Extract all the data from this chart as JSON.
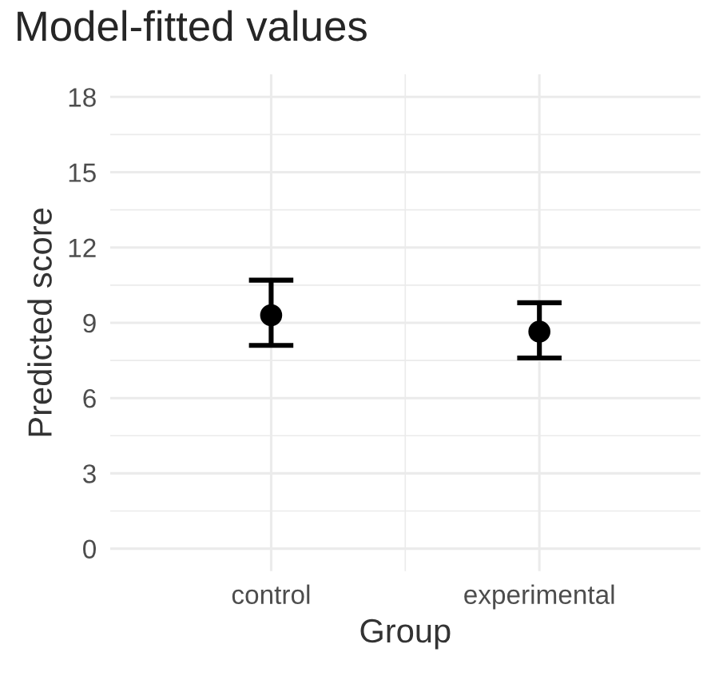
{
  "chart_data": {
    "type": "scatter",
    "title": "Model-fitted values",
    "xlabel": "Group",
    "ylabel": "Predicted score",
    "categories": [
      "control",
      "experimental"
    ],
    "values": [
      9.3,
      8.65
    ],
    "errors": [
      [
        8.1,
        10.7
      ],
      [
        7.6,
        9.8
      ]
    ],
    "color": "#000000",
    "marker": "circle",
    "ylim": [
      -0.9,
      18.9
    ],
    "yticks": [
      0,
      3,
      6,
      9,
      12,
      15,
      18
    ],
    "grid": true
  }
}
